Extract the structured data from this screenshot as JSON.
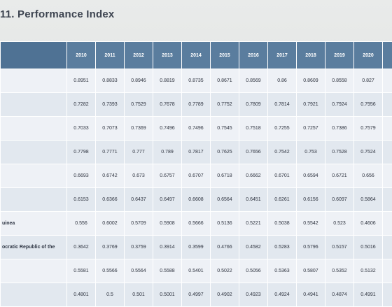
{
  "title": "11. Performance Index",
  "table": {
    "years": [
      "2010",
      "2011",
      "2012",
      "2013",
      "2014",
      "2015",
      "2016",
      "2017",
      "2018",
      "2019",
      "2020",
      "2"
    ],
    "rows": [
      {
        "name": "",
        "values": [
          "0.8951",
          "0.8833",
          "0.8946",
          "0.8819",
          "0.8735",
          "0.8671",
          "0.8569",
          "0.86",
          "0.8609",
          "0.8558",
          "0.827",
          "0.8"
        ]
      },
      {
        "name": "",
        "values": [
          "0.7282",
          "0.7393",
          "0.7529",
          "0.7678",
          "0.7789",
          "0.7752",
          "0.7809",
          "0.7814",
          "0.7921",
          "0.7924",
          "0.7956",
          "0.8"
        ]
      },
      {
        "name": "",
        "values": [
          "0.7033",
          "0.7073",
          "0.7369",
          "0.7496",
          "0.7496",
          "0.7545",
          "0.7518",
          "0.7255",
          "0.7257",
          "0.7386",
          "0.7579",
          "0.7"
        ]
      },
      {
        "name": "",
        "values": [
          "0.7798",
          "0.7771",
          "0.777",
          "0.789",
          "0.7817",
          "0.7625",
          "0.7656",
          "0.7542",
          "0.753",
          "0.7528",
          "0.7524",
          "0.7"
        ]
      },
      {
        "name": "",
        "values": [
          "0.6693",
          "0.6742",
          "0.673",
          "0.6757",
          "0.6707",
          "0.6718",
          "0.6662",
          "0.6701",
          "0.6594",
          "0.6721",
          "0.656",
          "0.6"
        ]
      },
      {
        "name": "",
        "values": [
          "0.6153",
          "0.6366",
          "0.6437",
          "0.6497",
          "0.6608",
          "0.6564",
          "0.6451",
          "0.6261",
          "0.6156",
          "0.6097",
          "0.5864",
          "0.5"
        ]
      },
      {
        "name": "uinea",
        "values": [
          "0.556",
          "0.6002",
          "0.5709",
          "0.5908",
          "0.5666",
          "0.5136",
          "0.5221",
          "0.5038",
          "0.5542",
          "0.523",
          "0.4606",
          "0.5"
        ]
      },
      {
        "name": "ocratic Republic of the",
        "values": [
          "0.3642",
          "0.3769",
          "0.3759",
          "0.3914",
          "0.3599",
          "0.4766",
          "0.4582",
          "0.5283",
          "0.5796",
          "0.5157",
          "0.5016",
          "0"
        ]
      },
      {
        "name": "",
        "values": [
          "0.5581",
          "0.5566",
          "0.5564",
          "0.5588",
          "0.5401",
          "0.5022",
          "0.5056",
          "0.5363",
          "0.5807",
          "0.5352",
          "0.5132",
          "0.5"
        ]
      },
      {
        "name": "",
        "values": [
          "0.4801",
          "0.5",
          "0.501",
          "0.5001",
          "0.4997",
          "0.4902",
          "0.4923",
          "0.4924",
          "0.4941",
          "0.4874",
          "0.4991",
          "0.5"
        ]
      }
    ]
  }
}
